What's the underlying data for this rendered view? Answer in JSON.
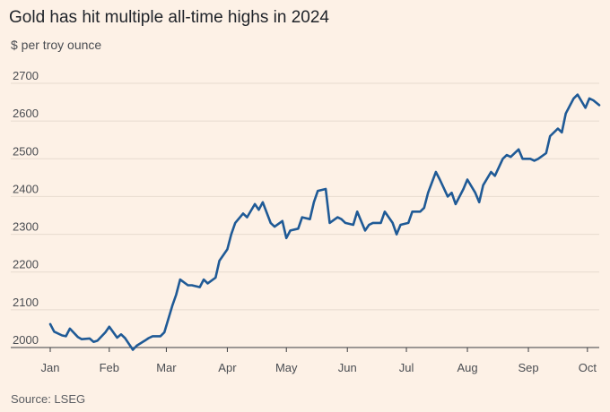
{
  "title": "Gold has hit multiple all-time highs in 2024",
  "subtitle": "$ per troy ounce",
  "source": "Source: LSEG",
  "colors": {
    "line": "#1f5a96",
    "grid": "#e7dbcf",
    "background": "#fdf1e6"
  },
  "chart_data": {
    "type": "line",
    "title": "Gold has hit multiple all-time highs in 2024",
    "ylabel": "$ per troy ounce",
    "ylim": [
      2000,
      2700
    ],
    "yticks": [
      2000,
      2100,
      2200,
      2300,
      2400,
      2500,
      2600,
      2700
    ],
    "xlim": [
      "2024-01-02",
      "2024-10-07"
    ],
    "xticks": [
      {
        "label": "Jan",
        "date": "2024-01-01"
      },
      {
        "label": "Feb",
        "date": "2024-02-01"
      },
      {
        "label": "Mar",
        "date": "2024-03-01"
      },
      {
        "label": "Apr",
        "date": "2024-04-01"
      },
      {
        "label": "May",
        "date": "2024-05-01"
      },
      {
        "label": "Jun",
        "date": "2024-06-01"
      },
      {
        "label": "Jul",
        "date": "2024-07-01"
      },
      {
        "label": "Aug",
        "date": "2024-08-01"
      },
      {
        "label": "Sep",
        "date": "2024-09-01"
      },
      {
        "label": "Oct",
        "date": "2024-10-01"
      }
    ],
    "grid": true,
    "series": [
      {
        "values": [
          [
            "2024-01-02",
            2062
          ],
          [
            "2024-01-04",
            2042
          ],
          [
            "2024-01-08",
            2032
          ],
          [
            "2024-01-10",
            2030
          ],
          [
            "2024-01-12",
            2050
          ],
          [
            "2024-01-16",
            2028
          ],
          [
            "2024-01-18",
            2022
          ],
          [
            "2024-01-22",
            2024
          ],
          [
            "2024-01-24",
            2015
          ],
          [
            "2024-01-26",
            2018
          ],
          [
            "2024-01-30",
            2040
          ],
          [
            "2024-02-01",
            2055
          ],
          [
            "2024-02-05",
            2026
          ],
          [
            "2024-02-07",
            2035
          ],
          [
            "2024-02-09",
            2025
          ],
          [
            "2024-02-13",
            1994
          ],
          [
            "2024-02-15",
            2005
          ],
          [
            "2024-02-19",
            2018
          ],
          [
            "2024-02-21",
            2025
          ],
          [
            "2024-02-23",
            2030
          ],
          [
            "2024-02-27",
            2030
          ],
          [
            "2024-02-29",
            2040
          ],
          [
            "2024-03-04",
            2110
          ],
          [
            "2024-03-06",
            2140
          ],
          [
            "2024-03-08",
            2180
          ],
          [
            "2024-03-12",
            2165
          ],
          [
            "2024-03-14",
            2165
          ],
          [
            "2024-03-18",
            2160
          ],
          [
            "2024-03-20",
            2180
          ],
          [
            "2024-03-22",
            2170
          ],
          [
            "2024-03-26",
            2185
          ],
          [
            "2024-03-28",
            2230
          ],
          [
            "2024-04-01",
            2260
          ],
          [
            "2024-04-03",
            2300
          ],
          [
            "2024-04-05",
            2330
          ],
          [
            "2024-04-09",
            2355
          ],
          [
            "2024-04-11",
            2345
          ],
          [
            "2024-04-15",
            2380
          ],
          [
            "2024-04-17",
            2365
          ],
          [
            "2024-04-19",
            2385
          ],
          [
            "2024-04-23",
            2330
          ],
          [
            "2024-04-25",
            2320
          ],
          [
            "2024-04-29",
            2335
          ],
          [
            "2024-05-01",
            2290
          ],
          [
            "2024-05-03",
            2310
          ],
          [
            "2024-05-07",
            2315
          ],
          [
            "2024-05-09",
            2345
          ],
          [
            "2024-05-13",
            2340
          ],
          [
            "2024-05-15",
            2385
          ],
          [
            "2024-05-17",
            2415
          ],
          [
            "2024-05-21",
            2420
          ],
          [
            "2024-05-23",
            2330
          ],
          [
            "2024-05-27",
            2345
          ],
          [
            "2024-05-29",
            2340
          ],
          [
            "2024-05-31",
            2330
          ],
          [
            "2024-06-04",
            2325
          ],
          [
            "2024-06-06",
            2360
          ],
          [
            "2024-06-10",
            2310
          ],
          [
            "2024-06-12",
            2325
          ],
          [
            "2024-06-14",
            2330
          ],
          [
            "2024-06-18",
            2330
          ],
          [
            "2024-06-20",
            2360
          ],
          [
            "2024-06-24",
            2330
          ],
          [
            "2024-06-26",
            2300
          ],
          [
            "2024-06-28",
            2325
          ],
          [
            "2024-07-02",
            2330
          ],
          [
            "2024-07-04",
            2360
          ],
          [
            "2024-07-08",
            2360
          ],
          [
            "2024-07-10",
            2370
          ],
          [
            "2024-07-12",
            2410
          ],
          [
            "2024-07-16",
            2465
          ],
          [
            "2024-07-18",
            2445
          ],
          [
            "2024-07-22",
            2400
          ],
          [
            "2024-07-24",
            2410
          ],
          [
            "2024-07-26",
            2380
          ],
          [
            "2024-07-30",
            2420
          ],
          [
            "2024-08-01",
            2445
          ],
          [
            "2024-08-05",
            2410
          ],
          [
            "2024-08-07",
            2385
          ],
          [
            "2024-08-09",
            2430
          ],
          [
            "2024-08-13",
            2465
          ],
          [
            "2024-08-15",
            2455
          ],
          [
            "2024-08-19",
            2500
          ],
          [
            "2024-08-21",
            2510
          ],
          [
            "2024-08-23",
            2505
          ],
          [
            "2024-08-27",
            2525
          ],
          [
            "2024-08-29",
            2500
          ],
          [
            "2024-09-02",
            2500
          ],
          [
            "2024-09-04",
            2495
          ],
          [
            "2024-09-06",
            2500
          ],
          [
            "2024-09-10",
            2515
          ],
          [
            "2024-09-12",
            2560
          ],
          [
            "2024-09-16",
            2580
          ],
          [
            "2024-09-18",
            2570
          ],
          [
            "2024-09-20",
            2620
          ],
          [
            "2024-09-24",
            2660
          ],
          [
            "2024-09-26",
            2670
          ],
          [
            "2024-09-30",
            2635
          ],
          [
            "2024-10-02",
            2660
          ],
          [
            "2024-10-04",
            2655
          ],
          [
            "2024-10-07",
            2642
          ]
        ]
      }
    ]
  }
}
